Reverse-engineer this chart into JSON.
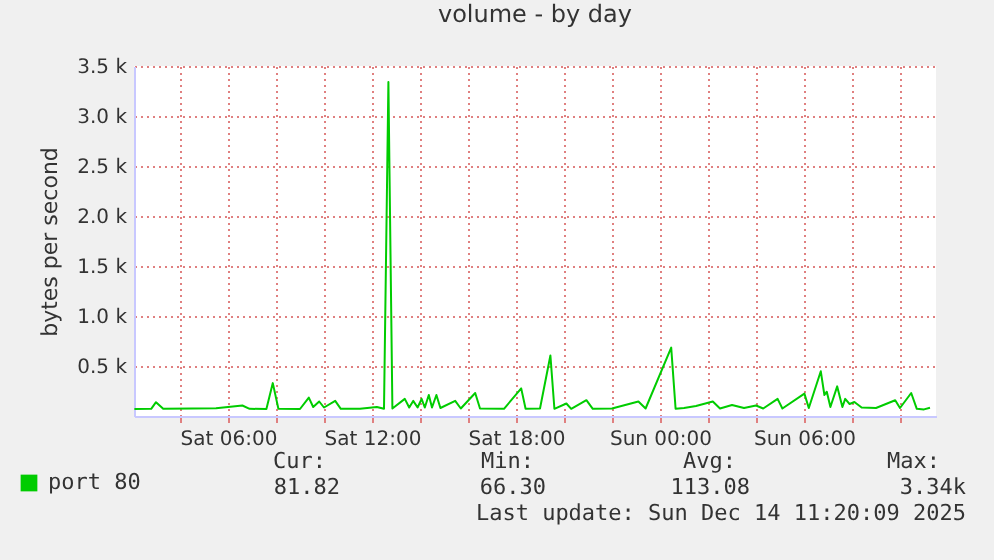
{
  "chart_data": {
    "type": "line",
    "title": "volume - by day",
    "ylabel": "bytes per second",
    "x": [
      "2025-12-13T02:06",
      "2025-12-13T02:48",
      "2025-12-13T03:00",
      "2025-12-13T03:18",
      "2025-12-13T04:30",
      "2025-12-13T05:30",
      "2025-12-13T06:36",
      "2025-12-13T06:54",
      "2025-12-13T07:36",
      "2025-12-13T07:52",
      "2025-12-13T08:06",
      "2025-12-13T09:00",
      "2025-12-13T09:22",
      "2025-12-13T09:33",
      "2025-12-13T09:48",
      "2025-12-13T10:00",
      "2025-12-13T10:28",
      "2025-12-13T10:42",
      "2025-12-13T11:30",
      "2025-12-13T12:12",
      "2025-12-13T12:30",
      "2025-12-13T12:41",
      "2025-12-13T12:51",
      "2025-12-13T13:22",
      "2025-12-13T13:33",
      "2025-12-13T13:43",
      "2025-12-13T13:54",
      "2025-12-13T14:04",
      "2025-12-13T14:12",
      "2025-12-13T14:22",
      "2025-12-13T14:30",
      "2025-12-13T14:41",
      "2025-12-13T14:51",
      "2025-12-13T15:28",
      "2025-12-13T15:42",
      "2025-12-13T16:18",
      "2025-12-13T16:30",
      "2025-12-13T17:30",
      "2025-12-13T18:13",
      "2025-12-13T18:24",
      "2025-12-13T19:00",
      "2025-12-13T19:26",
      "2025-12-13T19:36",
      "2025-12-13T20:06",
      "2025-12-13T20:18",
      "2025-12-13T20:56",
      "2025-12-13T21:12",
      "2025-12-13T22:00",
      "2025-12-13T23:06",
      "2025-12-13T23:24",
      "2025-12-14T00:28",
      "2025-12-14T00:39",
      "2025-12-14T01:00",
      "2025-12-14T01:30",
      "2025-12-14T02:12",
      "2025-12-14T02:30",
      "2025-12-14T03:00",
      "2025-12-14T03:30",
      "2025-12-14T04:00",
      "2025-12-14T04:18",
      "2025-12-14T04:54",
      "2025-12-14T05:06",
      "2025-12-14T06:01",
      "2025-12-14T06:12",
      "2025-12-14T06:42",
      "2025-12-14T06:51",
      "2025-12-14T06:57",
      "2025-12-14T07:06",
      "2025-12-14T07:23",
      "2025-12-14T07:36",
      "2025-12-14T07:43",
      "2025-12-14T07:54",
      "2025-12-14T08:06",
      "2025-12-14T08:24",
      "2025-12-14T09:00",
      "2025-12-14T09:48",
      "2025-12-14T10:00",
      "2025-12-14T10:28",
      "2025-12-14T10:42",
      "2025-12-14T11:00",
      "2025-12-14T11:15"
    ],
    "series": [
      {
        "name": "port 80",
        "color": "#00cc00",
        "values": [
          70,
          72,
          138,
          72,
          75,
          78,
          105,
          72,
          70,
          329,
          72,
          70,
          184,
          90,
          145,
          85,
          151,
          72,
          72,
          90,
          72,
          3340,
          75,
          171,
          85,
          151,
          85,
          171,
          85,
          210,
          85,
          210,
          80,
          151,
          75,
          230,
          75,
          72,
          276,
          72,
          75,
          605,
          72,
          125,
          72,
          158,
          72,
          75,
          145,
          75,
          684,
          72,
          80,
          100,
          145,
          75,
          110,
          80,
          105,
          75,
          171,
          75,
          224,
          80,
          447,
          210,
          243,
          90,
          296,
          90,
          171,
          120,
          140,
          85,
          80,
          158,
          80,
          230,
          72,
          66,
          82
        ]
      }
    ],
    "xlim": [
      "2025-12-13T02:05",
      "2025-12-14T11:30"
    ],
    "xticks": [
      {
        "value": "2025-12-13T04:00",
        "label": null
      },
      {
        "value": "2025-12-13T06:00",
        "label": "Sat 06:00"
      },
      {
        "value": "2025-12-13T08:00",
        "label": null
      },
      {
        "value": "2025-12-13T10:00",
        "label": null
      },
      {
        "value": "2025-12-13T12:00",
        "label": "Sat 12:00"
      },
      {
        "value": "2025-12-13T14:00",
        "label": null
      },
      {
        "value": "2025-12-13T16:00",
        "label": null
      },
      {
        "value": "2025-12-13T18:00",
        "label": "Sat 18:00"
      },
      {
        "value": "2025-12-13T20:00",
        "label": null
      },
      {
        "value": "2025-12-13T22:00",
        "label": null
      },
      {
        "value": "2025-12-14T00:00",
        "label": "Sun 00:00"
      },
      {
        "value": "2025-12-14T02:00",
        "label": null
      },
      {
        "value": "2025-12-14T04:00",
        "label": null
      },
      {
        "value": "2025-12-14T06:00",
        "label": "Sun 06:00"
      },
      {
        "value": "2025-12-14T08:00",
        "label": null
      },
      {
        "value": "2025-12-14T10:00",
        "label": null
      }
    ],
    "ylim": [
      0,
      3500
    ],
    "yticks": [
      {
        "value": 500,
        "label": "0.5 k"
      },
      {
        "value": 1000,
        "label": "1.0 k"
      },
      {
        "value": 1500,
        "label": "1.5 k"
      },
      {
        "value": 2000,
        "label": "2.0 k"
      },
      {
        "value": 2500,
        "label": "2.5 k"
      },
      {
        "value": 3000,
        "label": "3.0 k"
      },
      {
        "value": 3500,
        "label": "3.5 k"
      }
    ],
    "grid": true,
    "legend": "bottom left",
    "marker": "none",
    "line_style": "solid",
    "annotations": [
      "Cur:",
      "Min:",
      "Avg:",
      "Max:",
      "81.82",
      "66.30",
      "113.08",
      "3.34k",
      "Last update: Sun Dec 14 11:20:09 2025"
    ]
  }
}
